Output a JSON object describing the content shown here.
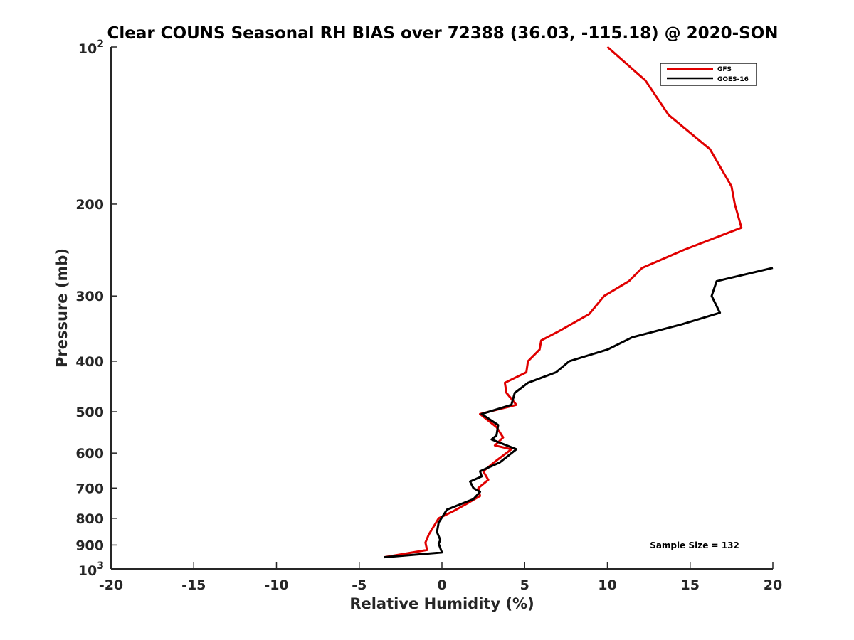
{
  "chart_data": {
    "type": "line",
    "title": "Clear COUNS Seasonal RH BIAS over 72388 (36.03, -115.18) @ 2020-SON",
    "xlabel": "Relative Humidity (%)",
    "ylabel": "Pressure (mb)",
    "xlim": [
      -20,
      20
    ],
    "ylim": [
      100,
      1000
    ],
    "y_scale": "log",
    "y_reversed": true,
    "x_ticks": [
      "-20",
      "-15",
      "-10",
      "-5",
      "0",
      "5",
      "10",
      "15",
      "20"
    ],
    "y_ticks": [
      {
        "value": 100,
        "base": "10",
        "exp": "2"
      },
      {
        "value": 200,
        "label": "200"
      },
      {
        "value": 300,
        "label": "300"
      },
      {
        "value": 400,
        "label": "400"
      },
      {
        "value": 500,
        "label": "500"
      },
      {
        "value": 600,
        "label": "600"
      },
      {
        "value": 700,
        "label": "700"
      },
      {
        "value": 800,
        "label": "800"
      },
      {
        "value": 900,
        "label": "900"
      },
      {
        "value": 1000,
        "base": "10",
        "exp": "3"
      }
    ],
    "grid": false,
    "legend_position": "top-right",
    "annotation": "Sample Size = 132",
    "series": [
      {
        "name": "GFS",
        "color": "#e00000",
        "points": [
          [
            10.0,
            100
          ],
          [
            12.3,
            116
          ],
          [
            13.7,
            135
          ],
          [
            16.2,
            157
          ],
          [
            17.5,
            185
          ],
          [
            17.7,
            200
          ],
          [
            18.1,
            222
          ],
          [
            14.6,
            245
          ],
          [
            12.1,
            265
          ],
          [
            11.3,
            281
          ],
          [
            9.8,
            300
          ],
          [
            8.9,
            325
          ],
          [
            7.1,
            350
          ],
          [
            6.0,
            365
          ],
          [
            5.9,
            380
          ],
          [
            5.2,
            400
          ],
          [
            5.1,
            420
          ],
          [
            3.8,
            440
          ],
          [
            3.9,
            460
          ],
          [
            4.5,
            485
          ],
          [
            2.3,
            505
          ],
          [
            3.3,
            535
          ],
          [
            3.7,
            560
          ],
          [
            3.2,
            580
          ],
          [
            4.2,
            590
          ],
          [
            3.3,
            620
          ],
          [
            2.5,
            650
          ],
          [
            2.8,
            675
          ],
          [
            2.2,
            700
          ],
          [
            2.3,
            725
          ],
          [
            1.5,
            750
          ],
          [
            0.7,
            775
          ],
          [
            -0.2,
            800
          ],
          [
            -0.8,
            860
          ],
          [
            -1.0,
            890
          ],
          [
            -0.9,
            920
          ],
          [
            -3.5,
            950
          ]
        ]
      },
      {
        "name": "GOES-16",
        "color": "#000000",
        "points": [
          [
            20.0,
            265
          ],
          [
            16.6,
            281
          ],
          [
            16.3,
            300
          ],
          [
            16.8,
            323
          ],
          [
            14.5,
            340
          ],
          [
            11.5,
            360
          ],
          [
            10.0,
            380
          ],
          [
            7.7,
            400
          ],
          [
            6.9,
            420
          ],
          [
            5.2,
            440
          ],
          [
            4.4,
            460
          ],
          [
            4.2,
            485
          ],
          [
            2.4,
            505
          ],
          [
            3.4,
            530
          ],
          [
            3.3,
            555
          ],
          [
            3.0,
            565
          ],
          [
            4.5,
            590
          ],
          [
            3.5,
            625
          ],
          [
            2.3,
            650
          ],
          [
            2.4,
            665
          ],
          [
            1.7,
            680
          ],
          [
            1.9,
            700
          ],
          [
            2.3,
            712
          ],
          [
            1.9,
            735
          ],
          [
            0.3,
            770
          ],
          [
            -0.2,
            815
          ],
          [
            -0.3,
            850
          ],
          [
            -0.1,
            880
          ],
          [
            -0.2,
            895
          ],
          [
            0.0,
            930
          ],
          [
            -3.5,
            950
          ]
        ]
      }
    ]
  }
}
